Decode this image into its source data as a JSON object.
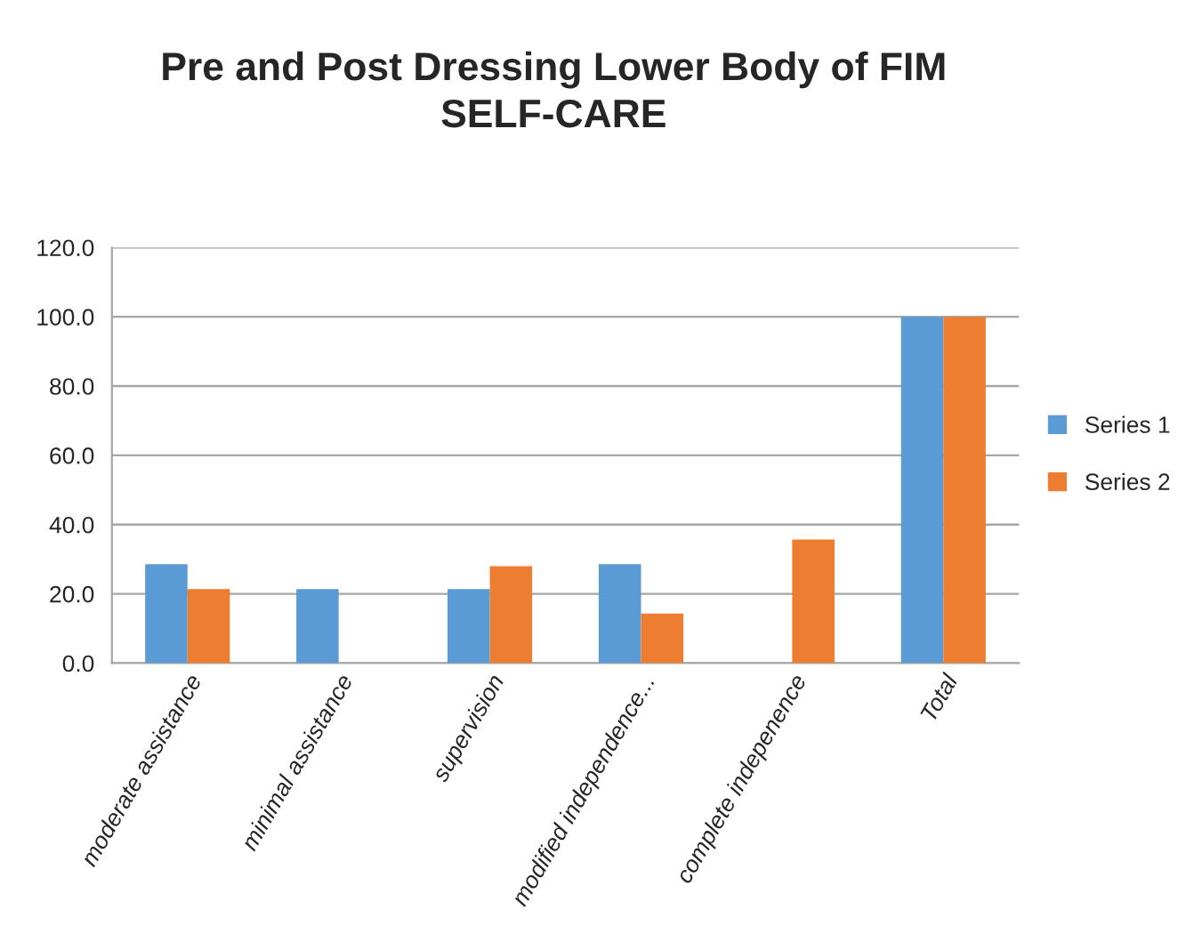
{
  "chart_data": {
    "type": "bar",
    "title": "Pre and Post Dressing Lower Body of FIM\nSELF-CARE",
    "categories": [
      "moderate assistance",
      "minimal assistance",
      "supervision",
      "modified independence...",
      "complete indepenence",
      "Total"
    ],
    "series": [
      {
        "name": "Series 1",
        "color": "#5b9bd5",
        "values": [
          28.6,
          21.4,
          21.4,
          28.6,
          0,
          100
        ]
      },
      {
        "name": "Series 2",
        "color": "#ed7d31",
        "values": [
          21.4,
          0,
          28.0,
          14.3,
          35.7,
          100
        ]
      }
    ],
    "ylim": [
      0,
      120
    ],
    "yticks": [
      {
        "value": 0,
        "label": "0.0"
      },
      {
        "value": 20,
        "label": "20.0"
      },
      {
        "value": 40,
        "label": "40.0"
      },
      {
        "value": 60,
        "label": "60.0"
      },
      {
        "value": 80,
        "label": "80.0"
      },
      {
        "value": 100,
        "label": "100.0"
      },
      {
        "value": 120,
        "label": "120.0"
      }
    ],
    "grid": "y",
    "legend": "right"
  }
}
